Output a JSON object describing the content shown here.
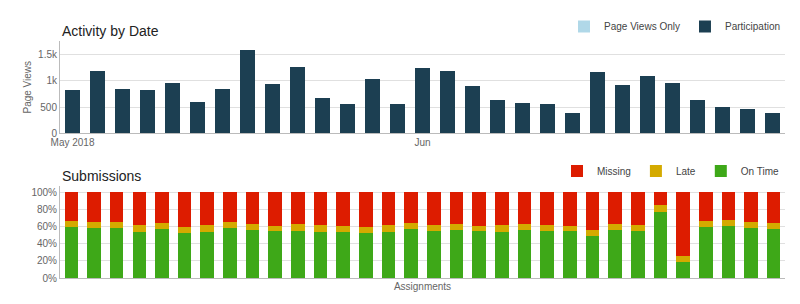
{
  "chart_data": [
    {
      "type": "bar",
      "title": "Activity by Date",
      "ylabel": "Page Views",
      "categories": [
        "May 2018",
        null,
        null,
        null,
        null,
        null,
        null,
        null,
        null,
        null,
        null,
        null,
        null,
        null,
        "Jun",
        null,
        null,
        null,
        null,
        null,
        null,
        null,
        null,
        null,
        null,
        null,
        null,
        null,
        null
      ],
      "series": [
        {
          "name": "Page Views Only",
          "color": "#b0d8e8",
          "values": [
            null,
            null,
            null,
            null,
            null,
            null,
            null,
            null,
            null,
            null,
            null,
            null,
            null,
            null,
            null,
            null,
            null,
            null,
            null,
            null,
            null,
            null,
            null,
            null,
            null,
            null,
            null,
            null,
            null
          ]
        },
        {
          "name": "Participation",
          "color": "#1c3f52",
          "values": [
            820,
            1180,
            840,
            820,
            950,
            590,
            840,
            1580,
            940,
            1250,
            670,
            560,
            1040,
            550,
            1230,
            1180,
            900,
            640,
            580,
            550,
            380,
            1160,
            910,
            1080,
            950,
            630,
            500,
            470,
            380
          ]
        }
      ],
      "ylim": [
        0,
        1750
      ],
      "yticks": [
        0,
        500,
        {
          "value": 1000,
          "label": "1k"
        },
        {
          "value": 1500,
          "label": "1.5k"
        }
      ],
      "grid": true,
      "legend": "upper right"
    },
    {
      "type": "bar",
      "stacked": true,
      "title": "Submissions",
      "xlabel": "Assignments",
      "categories": [
        null,
        null,
        null,
        null,
        null,
        null,
        null,
        null,
        null,
        null,
        null,
        null,
        null,
        null,
        null,
        null,
        null,
        null,
        null,
        null,
        null,
        null,
        null,
        null,
        null,
        null,
        null,
        null,
        null,
        null,
        null,
        null
      ],
      "series": [
        {
          "name": "Missing",
          "color": "#dd1c00",
          "values": [
            0.33,
            0.34,
            0.34,
            0.38,
            0.36,
            0.4,
            0.38,
            0.34,
            0.37,
            0.39,
            0.37,
            0.38,
            0.39,
            0.4,
            0.38,
            0.36,
            0.38,
            0.37,
            0.39,
            0.38,
            0.37,
            0.38,
            0.39,
            0.44,
            0.37,
            0.38,
            0.15,
            0.74,
            0.33,
            0.32,
            0.34,
            0.36
          ]
        },
        {
          "name": "Late",
          "color": "#d4aa00",
          "values": [
            0.07,
            0.07,
            0.07,
            0.08,
            0.07,
            0.07,
            0.08,
            0.07,
            0.07,
            0.06,
            0.08,
            0.08,
            0.07,
            0.07,
            0.08,
            0.07,
            0.07,
            0.07,
            0.06,
            0.08,
            0.07,
            0.07,
            0.06,
            0.07,
            0.07,
            0.07,
            0.08,
            0.07,
            0.07,
            0.07,
            0.07,
            0.07
          ]
        },
        {
          "name": "On Time",
          "color": "#3ea818",
          "values": [
            0.6,
            0.59,
            0.59,
            0.54,
            0.57,
            0.53,
            0.54,
            0.59,
            0.56,
            0.55,
            0.55,
            0.54,
            0.54,
            0.53,
            0.54,
            0.57,
            0.55,
            0.56,
            0.55,
            0.54,
            0.56,
            0.55,
            0.55,
            0.49,
            0.56,
            0.55,
            0.77,
            0.19,
            0.6,
            0.61,
            0.59,
            0.57
          ]
        }
      ],
      "ylim": [
        0,
        1.08
      ],
      "yticks": [
        {
          "value": 0,
          "label": "0%"
        },
        {
          "value": 0.2,
          "label": "20%"
        },
        {
          "value": 0.4,
          "label": "40%"
        },
        {
          "value": 0.6,
          "label": "60%"
        },
        {
          "value": 0.8,
          "label": "80%"
        },
        {
          "value": 1.0,
          "label": "100%"
        }
      ],
      "grid": true,
      "legend": "upper right",
      "tick_labels": "y"
    }
  ]
}
